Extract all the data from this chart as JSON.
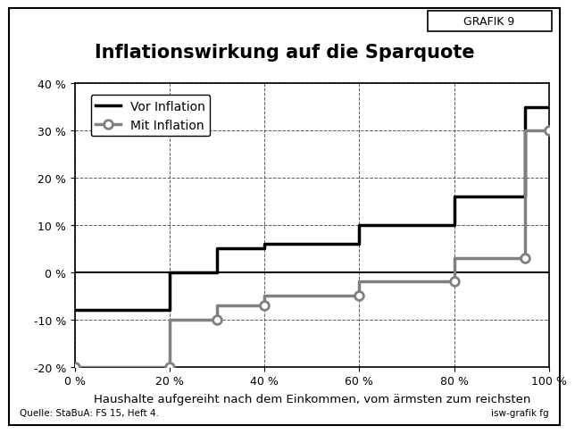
{
  "title": "Inflationswirkung auf die Sparquote",
  "xlabel": "Haushalte aufgereiht nach dem Einkommen, vom ärmsten zum reichsten",
  "source_left": "Quelle: StaBuA: FS 15, Heft 4.",
  "source_right": "isw-grafik fg",
  "grafik_label": "GRAFIK 9",
  "ylim": [
    -20,
    40
  ],
  "xlim": [
    0,
    100
  ],
  "yticks": [
    -20,
    -10,
    0,
    10,
    20,
    30,
    40
  ],
  "xticks": [
    0,
    20,
    40,
    60,
    80,
    100
  ],
  "ytick_labels": [
    "-20 %",
    "-10 %",
    "0 %",
    "10 %",
    "20 %",
    "30 %",
    "40 %"
  ],
  "xtick_labels": [
    "0 %",
    "20 %",
    "40 %",
    "60 %",
    "80 %",
    "100 %"
  ],
  "vor_inflation_x": [
    0,
    20,
    20,
    30,
    30,
    40,
    40,
    60,
    60,
    80,
    80,
    95,
    95,
    100
  ],
  "vor_inflation_y": [
    -8,
    -8,
    0,
    0,
    5,
    5,
    6,
    6,
    10,
    10,
    16,
    16,
    35,
    35
  ],
  "mit_inflation_x": [
    0,
    20,
    20,
    30,
    30,
    40,
    40,
    60,
    60,
    80,
    80,
    95,
    95,
    100
  ],
  "mit_inflation_y": [
    -20,
    -20,
    -10,
    -10,
    -7,
    -7,
    -5,
    -5,
    -2,
    -2,
    3,
    3,
    30,
    30
  ],
  "mit_inflation_marker_x": [
    0,
    20,
    30,
    40,
    60,
    80,
    95,
    100
  ],
  "mit_inflation_marker_y": [
    -20,
    -20,
    -10,
    -7,
    -5,
    -2,
    3,
    30
  ],
  "vor_inflation_color": "#000000",
  "mit_inflation_color": "#808080",
  "background_color": "#ffffff",
  "legend_vor": "Vor Inflation",
  "legend_mit": "Mit Inflation",
  "title_fontsize": 15,
  "axis_fontsize": 9.5,
  "tick_fontsize": 9,
  "legend_fontsize": 10
}
